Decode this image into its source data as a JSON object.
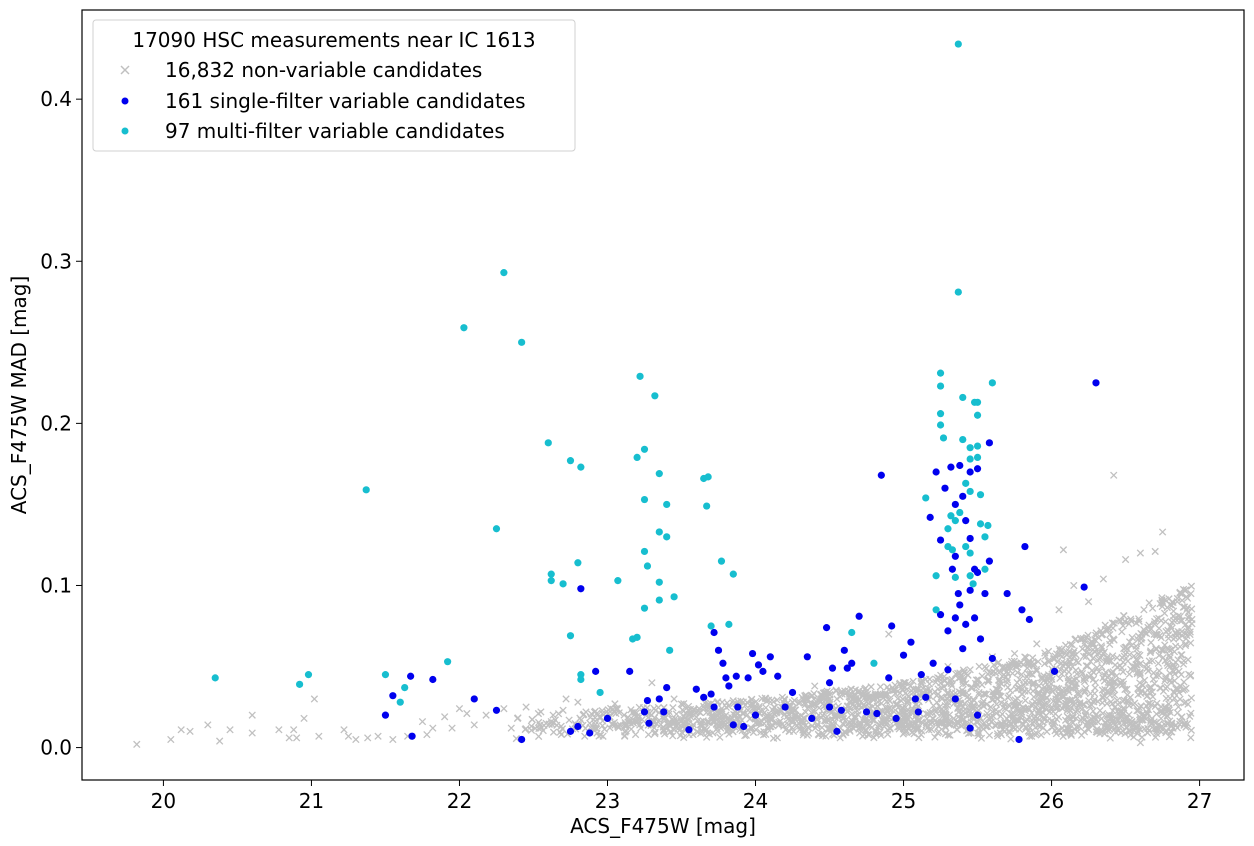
{
  "chart_data": {
    "type": "scatter",
    "title": "",
    "xlabel": "ACS_F475W [mag]",
    "ylabel": "ACS_F475W MAD [mag]",
    "xlim": [
      19.45,
      27.3
    ],
    "ylim": [
      -0.02,
      0.455
    ],
    "xticks": [
      20,
      21,
      22,
      23,
      24,
      25,
      26,
      27
    ],
    "yticks": [
      0.0,
      0.1,
      0.2,
      0.3,
      0.4
    ],
    "ytick_labels": [
      "0.0",
      "0.1",
      "0.2",
      "0.3",
      "0.4"
    ],
    "grid": false,
    "legend": {
      "placement": "upper-left",
      "title": "17090 HSC measurements near IC 1613",
      "entries": [
        "16,832 non-variable candidates",
        "161 single-filter variable candidates",
        "97 multi-filter variable candidates"
      ]
    },
    "series": [
      {
        "name": "16,832 non-variable candidates",
        "marker": "x",
        "color": "#c0c0c0",
        "points": [
          [
            19.82,
            0.002
          ],
          [
            20.05,
            0.005
          ],
          [
            20.12,
            0.011
          ],
          [
            20.18,
            0.01
          ],
          [
            20.3,
            0.014
          ],
          [
            20.38,
            0.004
          ],
          [
            20.45,
            0.011
          ],
          [
            20.6,
            0.02
          ],
          [
            20.6,
            0.009
          ],
          [
            20.78,
            0.011
          ],
          [
            20.85,
            0.006
          ],
          [
            20.88,
            0.011
          ],
          [
            20.9,
            0.006
          ],
          [
            20.95,
            0.018
          ],
          [
            21.02,
            0.03
          ],
          [
            21.05,
            0.007
          ],
          [
            21.22,
            0.011
          ],
          [
            21.25,
            0.007
          ],
          [
            21.3,
            0.005
          ],
          [
            21.38,
            0.006
          ],
          [
            21.45,
            0.007
          ],
          [
            21.55,
            0.005
          ],
          [
            21.65,
            0.007
          ],
          [
            21.75,
            0.016
          ],
          [
            21.78,
            0.008
          ],
          [
            21.82,
            0.012
          ],
          [
            21.9,
            0.019
          ],
          [
            21.95,
            0.012
          ],
          [
            22.0,
            0.024
          ],
          [
            22.05,
            0.021
          ],
          [
            22.1,
            0.014
          ],
          [
            22.18,
            0.02
          ],
          [
            22.3,
            0.024
          ],
          [
            22.35,
            0.012
          ],
          [
            22.45,
            0.025
          ],
          [
            22.55,
            0.022
          ],
          [
            22.62,
            0.016
          ],
          [
            22.7,
            0.023
          ],
          [
            22.8,
            0.028
          ],
          [
            22.88,
            0.015
          ],
          [
            22.95,
            0.019
          ],
          [
            23.05,
            0.027
          ],
          [
            23.18,
            0.02
          ],
          [
            23.3,
            0.04
          ],
          [
            23.45,
            0.03
          ],
          [
            23.55,
            0.018
          ],
          [
            23.7,
            0.027
          ],
          [
            23.8,
            0.02
          ],
          [
            23.95,
            0.023
          ],
          [
            24.1,
            0.02
          ],
          [
            24.25,
            0.028
          ],
          [
            24.4,
            0.038
          ],
          [
            24.55,
            0.03
          ],
          [
            24.7,
            0.035
          ],
          [
            24.85,
            0.032
          ],
          [
            25.0,
            0.04
          ],
          [
            25.15,
            0.042
          ],
          [
            25.3,
            0.05
          ],
          [
            25.45,
            0.048
          ],
          [
            25.6,
            0.056
          ],
          [
            25.75,
            0.058
          ],
          [
            25.9,
            0.064
          ],
          [
            26.05,
            0.085
          ],
          [
            26.08,
            0.122
          ],
          [
            26.15,
            0.1
          ],
          [
            26.25,
            0.09
          ],
          [
            26.35,
            0.104
          ],
          [
            26.42,
            0.168
          ],
          [
            26.5,
            0.116
          ],
          [
            26.6,
            0.12
          ],
          [
            26.7,
            0.121
          ],
          [
            26.75,
            0.133
          ],
          [
            26.85,
            0.092
          ],
          [
            26.9,
            0.015
          ],
          [
            26.1,
            0.012
          ],
          [
            26.6,
            0.003
          ],
          [
            24.9,
            0.07
          ],
          [
            25.7,
            0.04
          ],
          [
            26.3,
            0.02
          ],
          [
            26.8,
            0.05
          ],
          [
            23.45,
            0.015
          ],
          [
            22.72,
            0.03
          ]
        ],
        "cloud": {
          "x_range": [
            22.3,
            26.95
          ],
          "y_floor": [
            0.005,
            0.015
          ],
          "y_upper_trend": [
            [
              22.3,
              0.02
            ],
            [
              24.0,
              0.03
            ],
            [
              25.0,
              0.04
            ],
            [
              26.0,
              0.06
            ],
            [
              26.9,
              0.1
            ]
          ]
        }
      },
      {
        "name": "161 single-filter variable candidates",
        "marker": "o",
        "color": "#0000ee",
        "points": [
          [
            21.5,
            0.02
          ],
          [
            21.55,
            0.032
          ],
          [
            21.67,
            0.044
          ],
          [
            21.68,
            0.007
          ],
          [
            21.82,
            0.042
          ],
          [
            22.1,
            0.03
          ],
          [
            22.25,
            0.023
          ],
          [
            22.42,
            0.005
          ],
          [
            22.75,
            0.01
          ],
          [
            22.8,
            0.013
          ],
          [
            22.82,
            0.098
          ],
          [
            22.88,
            0.009
          ],
          [
            22.92,
            0.047
          ],
          [
            23.0,
            0.018
          ],
          [
            23.15,
            0.047
          ],
          [
            23.25,
            0.022
          ],
          [
            23.27,
            0.029
          ],
          [
            23.28,
            0.015
          ],
          [
            23.35,
            0.03
          ],
          [
            23.38,
            0.022
          ],
          [
            23.4,
            0.037
          ],
          [
            23.55,
            0.011
          ],
          [
            23.6,
            0.036
          ],
          [
            23.65,
            0.031
          ],
          [
            23.7,
            0.033
          ],
          [
            23.72,
            0.025
          ],
          [
            23.72,
            0.071
          ],
          [
            23.75,
            0.06
          ],
          [
            23.78,
            0.052
          ],
          [
            23.8,
            0.043
          ],
          [
            23.82,
            0.038
          ],
          [
            23.85,
            0.014
          ],
          [
            23.87,
            0.044
          ],
          [
            23.88,
            0.025
          ],
          [
            23.92,
            0.013
          ],
          [
            23.95,
            0.043
          ],
          [
            23.98,
            0.058
          ],
          [
            24.0,
            0.02
          ],
          [
            24.02,
            0.051
          ],
          [
            24.05,
            0.047
          ],
          [
            24.1,
            0.056
          ],
          [
            24.15,
            0.044
          ],
          [
            24.2,
            0.025
          ],
          [
            24.25,
            0.034
          ],
          [
            24.35,
            0.056
          ],
          [
            24.38,
            0.018
          ],
          [
            24.48,
            0.074
          ],
          [
            24.5,
            0.04
          ],
          [
            24.5,
            0.025
          ],
          [
            24.52,
            0.049
          ],
          [
            24.55,
            0.01
          ],
          [
            24.58,
            0.023
          ],
          [
            24.6,
            0.06
          ],
          [
            24.62,
            0.049
          ],
          [
            24.65,
            0.052
          ],
          [
            24.7,
            0.081
          ],
          [
            24.75,
            0.022
          ],
          [
            24.82,
            0.021
          ],
          [
            24.85,
            0.168
          ],
          [
            24.9,
            0.043
          ],
          [
            24.92,
            0.075
          ],
          [
            24.95,
            0.018
          ],
          [
            25.0,
            0.057
          ],
          [
            25.05,
            0.065
          ],
          [
            25.08,
            0.03
          ],
          [
            25.1,
            0.022
          ],
          [
            25.12,
            0.045
          ],
          [
            25.15,
            0.031
          ],
          [
            25.18,
            0.142
          ],
          [
            25.2,
            0.052
          ],
          [
            25.22,
            0.17
          ],
          [
            25.25,
            0.128
          ],
          [
            25.25,
            0.082
          ],
          [
            25.28,
            0.16
          ],
          [
            25.3,
            0.072
          ],
          [
            25.3,
            0.048
          ],
          [
            25.32,
            0.173
          ],
          [
            25.33,
            0.11
          ],
          [
            25.35,
            0.15
          ],
          [
            25.35,
            0.118
          ],
          [
            25.35,
            0.08
          ],
          [
            25.37,
            0.095
          ],
          [
            25.38,
            0.088
          ],
          [
            25.38,
            0.174
          ],
          [
            25.4,
            0.061
          ],
          [
            25.4,
            0.155
          ],
          [
            25.42,
            0.14
          ],
          [
            25.42,
            0.076
          ],
          [
            25.45,
            0.17
          ],
          [
            25.45,
            0.129
          ],
          [
            25.45,
            0.097
          ],
          [
            25.45,
            0.012
          ],
          [
            25.48,
            0.11
          ],
          [
            25.48,
            0.08
          ],
          [
            25.5,
            0.172
          ],
          [
            25.5,
            0.108
          ],
          [
            25.52,
            0.067
          ],
          [
            25.55,
            0.095
          ],
          [
            25.58,
            0.188
          ],
          [
            25.58,
            0.115
          ],
          [
            25.6,
            0.055
          ],
          [
            25.7,
            0.095
          ],
          [
            25.78,
            0.005
          ],
          [
            25.8,
            0.085
          ],
          [
            25.82,
            0.124
          ],
          [
            25.85,
            0.079
          ],
          [
            26.02,
            0.047
          ],
          [
            26.22,
            0.099
          ],
          [
            26.3,
            0.225
          ],
          [
            25.35,
            0.03
          ],
          [
            25.5,
            0.02
          ]
        ]
      },
      {
        "name": "97 multi-filter variable candidates",
        "marker": "o",
        "color": "#17becf",
        "points": [
          [
            20.35,
            0.043
          ],
          [
            20.92,
            0.039
          ],
          [
            20.98,
            0.045
          ],
          [
            21.37,
            0.159
          ],
          [
            21.5,
            0.045
          ],
          [
            21.6,
            0.028
          ],
          [
            21.63,
            0.037
          ],
          [
            21.92,
            0.053
          ],
          [
            22.03,
            0.259
          ],
          [
            22.25,
            0.135
          ],
          [
            22.3,
            0.293
          ],
          [
            22.42,
            0.25
          ],
          [
            22.6,
            0.188
          ],
          [
            22.62,
            0.107
          ],
          [
            22.62,
            0.103
          ],
          [
            22.7,
            0.101
          ],
          [
            22.75,
            0.177
          ],
          [
            22.75,
            0.069
          ],
          [
            22.8,
            0.114
          ],
          [
            22.82,
            0.173
          ],
          [
            22.82,
            0.045
          ],
          [
            22.82,
            0.042
          ],
          [
            22.95,
            0.034
          ],
          [
            23.07,
            0.103
          ],
          [
            23.17,
            0.067
          ],
          [
            23.2,
            0.068
          ],
          [
            23.22,
            0.229
          ],
          [
            23.2,
            0.179
          ],
          [
            23.25,
            0.184
          ],
          [
            23.25,
            0.153
          ],
          [
            23.25,
            0.121
          ],
          [
            23.25,
            0.086
          ],
          [
            23.27,
            0.112
          ],
          [
            23.32,
            0.217
          ],
          [
            23.35,
            0.169
          ],
          [
            23.35,
            0.133
          ],
          [
            23.35,
            0.102
          ],
          [
            23.35,
            0.091
          ],
          [
            23.4,
            0.15
          ],
          [
            23.4,
            0.13
          ],
          [
            23.42,
            0.06
          ],
          [
            23.45,
            0.093
          ],
          [
            23.65,
            0.166
          ],
          [
            23.67,
            0.149
          ],
          [
            23.68,
            0.167
          ],
          [
            23.7,
            0.075
          ],
          [
            23.77,
            0.115
          ],
          [
            23.82,
            0.076
          ],
          [
            23.85,
            0.107
          ],
          [
            24.65,
            0.071
          ],
          [
            24.8,
            0.052
          ],
          [
            25.15,
            0.154
          ],
          [
            25.22,
            0.106
          ],
          [
            25.22,
            0.085
          ],
          [
            25.25,
            0.231
          ],
          [
            25.25,
            0.223
          ],
          [
            25.25,
            0.206
          ],
          [
            25.25,
            0.199
          ],
          [
            25.27,
            0.191
          ],
          [
            25.3,
            0.135
          ],
          [
            25.32,
            0.143
          ],
          [
            25.35,
            0.105
          ],
          [
            25.35,
            0.14
          ],
          [
            25.37,
            0.281
          ],
          [
            25.37,
            0.434
          ],
          [
            25.38,
            0.145
          ],
          [
            25.4,
            0.216
          ],
          [
            25.4,
            0.19
          ],
          [
            25.42,
            0.163
          ],
          [
            25.42,
            0.124
          ],
          [
            25.45,
            0.185
          ],
          [
            25.45,
            0.178
          ],
          [
            25.45,
            0.158
          ],
          [
            25.45,
            0.12
          ],
          [
            25.45,
            0.106
          ],
          [
            25.47,
            0.101
          ],
          [
            25.48,
            0.213
          ],
          [
            25.5,
            0.213
          ],
          [
            25.5,
            0.205
          ],
          [
            25.5,
            0.186
          ],
          [
            25.5,
            0.179
          ],
          [
            25.52,
            0.156
          ],
          [
            25.52,
            0.138
          ],
          [
            25.55,
            0.13
          ],
          [
            25.55,
            0.11
          ],
          [
            25.57,
            0.137
          ],
          [
            25.6,
            0.225
          ],
          [
            25.3,
            0.124
          ],
          [
            25.33,
            0.122
          ]
        ]
      }
    ]
  }
}
